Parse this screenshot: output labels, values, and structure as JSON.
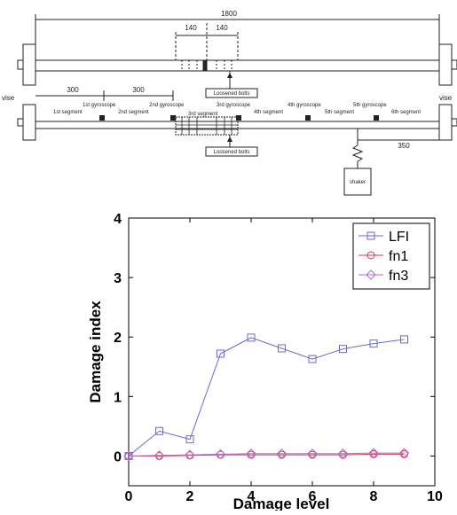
{
  "diagram": {
    "overall_length": "1800",
    "spacing_left": "140",
    "spacing_right": "140",
    "dim_300_a": "300",
    "dim_300_b": "300",
    "dim_350": "350",
    "vise_left": "vise",
    "vise_right": "vise",
    "loosened_bolts_top": "Loosened bolts",
    "loosened_bolts_bottom": "Loosened bolts",
    "shaker": "shaker",
    "segments": [
      "1st segment",
      "2nd segment",
      "3rd segment",
      "4th segment",
      "5th segment",
      "6th segment"
    ],
    "gyroscopes": [
      "1st gyroscope",
      "2nd gyroscope",
      "3rd gyroscope",
      "4th gyroscope",
      "5th gyroscope"
    ]
  },
  "chart_data": {
    "type": "line",
    "xlabel": "Damage level",
    "ylabel": "Damage index",
    "xlim": [
      0,
      10
    ],
    "ylim": [
      -0.5,
      4
    ],
    "xticks": [
      0,
      2,
      4,
      6,
      8,
      10
    ],
    "yticks": [
      0,
      1,
      2,
      3,
      4
    ],
    "grid": false,
    "legend_position": "top-right",
    "x": [
      0,
      1,
      2,
      3,
      4,
      5,
      6,
      7,
      8,
      9
    ],
    "series": [
      {
        "name": "LFI",
        "color": "#6a6ad0",
        "marker": "square",
        "values": [
          0.0,
          0.42,
          0.28,
          1.72,
          1.99,
          1.81,
          1.63,
          1.8,
          1.89,
          1.96
        ]
      },
      {
        "name": "fn1",
        "color": "#c83a5a",
        "marker": "circle",
        "values": [
          0.0,
          0.0,
          0.01,
          0.02,
          0.02,
          0.02,
          0.02,
          0.02,
          0.03,
          0.03
        ]
      },
      {
        "name": "fn3",
        "color": "#b46ac8",
        "marker": "diamond",
        "values": [
          0.0,
          0.01,
          0.02,
          0.03,
          0.04,
          0.04,
          0.04,
          0.04,
          0.05,
          0.05
        ]
      }
    ]
  }
}
